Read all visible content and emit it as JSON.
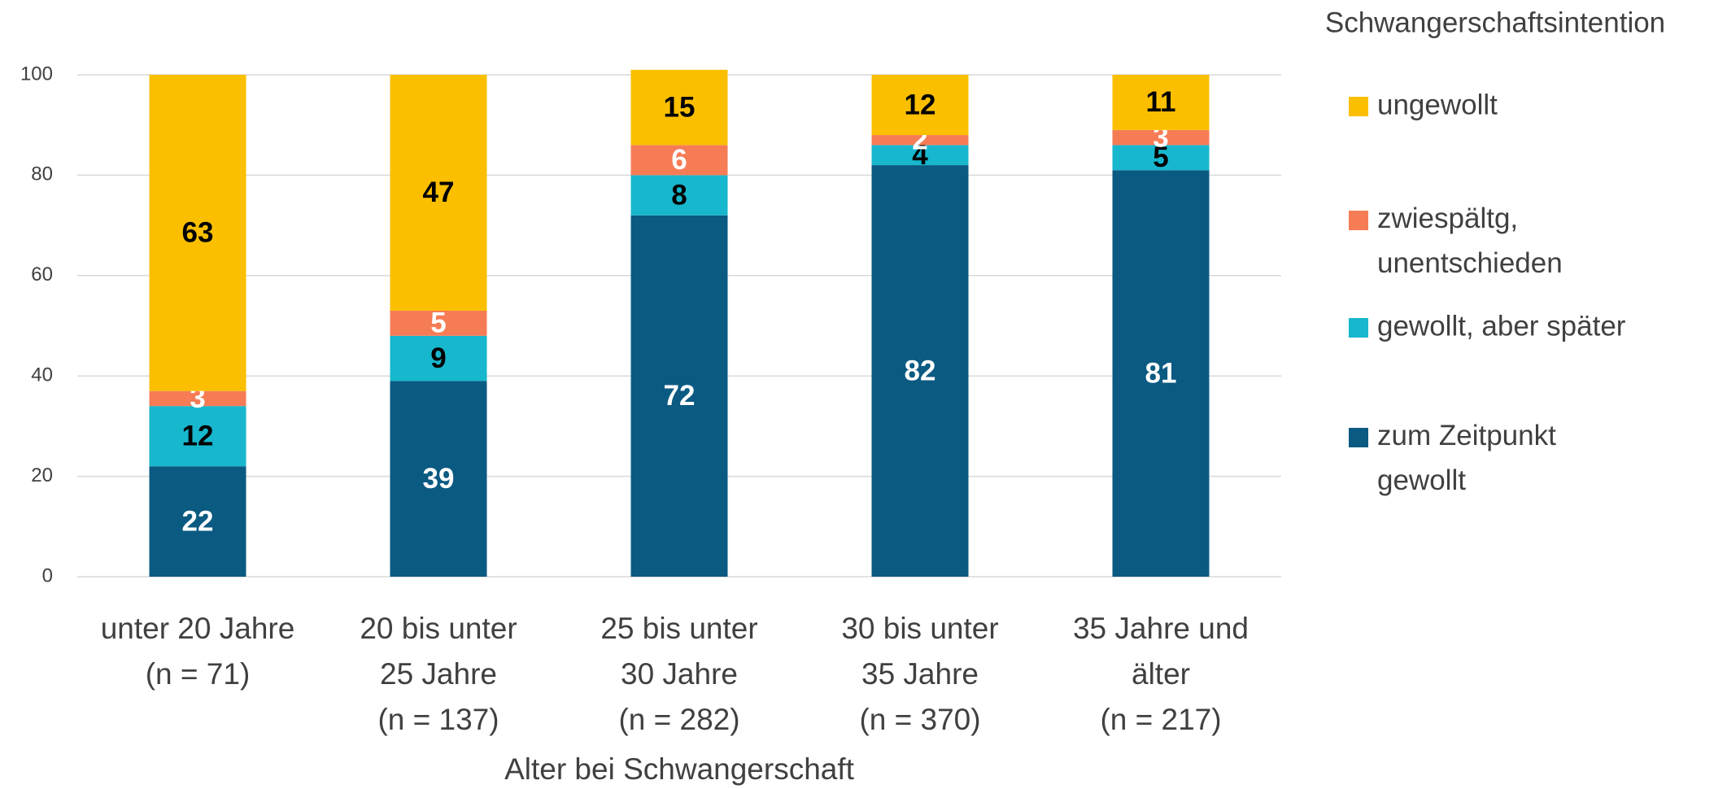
{
  "chart_data": {
    "type": "stacked_bar",
    "x_label": "Alter bei Schwangerschaft",
    "legend_title": "Schwangerschaftsintention",
    "legend": "right",
    "categories": [
      "unter 20 Jahre\n(n = 71)",
      "20 bis unter\n25 Jahre\n(n = 137)",
      "25 bis unter\n30 Jahre\n(n = 282)",
      "30 bis unter\n35 Jahre\n(n = 370)",
      "35 Jahre und\nälter\n(n = 217)"
    ],
    "series": [
      {
        "name": "zum Zeitpunkt\ngewollt",
        "color": "#0b5a82",
        "label_color": "#ffffff",
        "values": [
          22,
          39,
          72,
          82,
          81
        ]
      },
      {
        "name": "gewollt, aber später",
        "color": "#17b7cd",
        "label_color": "#000000",
        "values": [
          12,
          9,
          8,
          4,
          5
        ]
      },
      {
        "name": "zwiespältg,\nunentschieden",
        "color": "#f67c56",
        "label_color": "#ffffff",
        "values": [
          3,
          5,
          6,
          2,
          3
        ]
      },
      {
        "name": "ungewollt",
        "color": "#fbbf00",
        "label_color": "#000000",
        "values": [
          63,
          47,
          15,
          12,
          11
        ]
      }
    ],
    "ylim": [
      0,
      100
    ],
    "yticks": [
      0,
      20,
      40,
      60,
      80,
      100
    ],
    "grid": true
  }
}
